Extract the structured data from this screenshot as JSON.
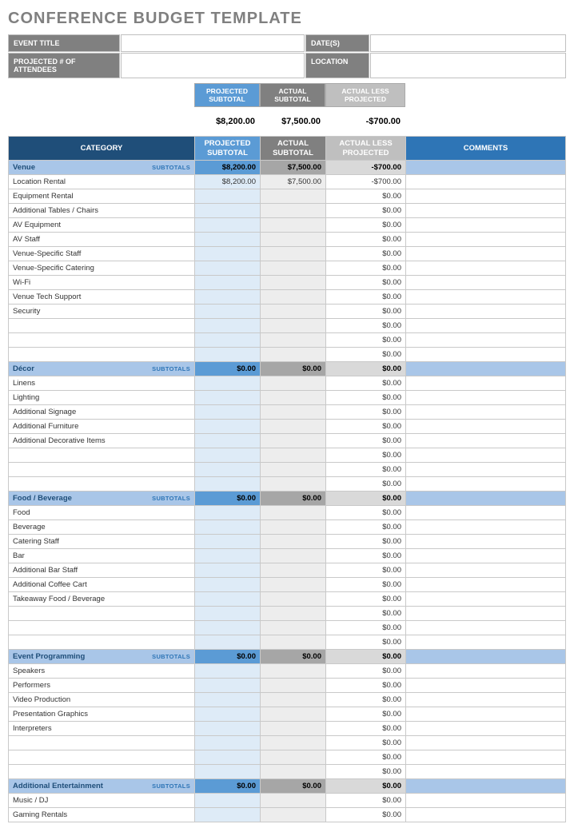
{
  "title": "CONFERENCE BUDGET TEMPLATE",
  "meta": {
    "event_title_label": "EVENT TITLE",
    "event_title_value": "",
    "dates_label": "DATE(S)",
    "dates_value": "",
    "attendees_label": "PROJECTED # OF ATTENDEES",
    "attendees_value": "",
    "location_label": "LOCATION",
    "location_value": ""
  },
  "summary": {
    "projected_label": "PROJECTED SUBTOTAL",
    "actual_label": "ACTUAL SUBTOTAL",
    "diff_label": "ACTUAL LESS PROJECTED",
    "projected": "$8,200.00",
    "actual": "$7,500.00",
    "diff": "-$700.00"
  },
  "headers": {
    "category": "CATEGORY",
    "projected": "PROJECTED SUBTOTAL",
    "actual": "ACTUAL SUBTOTAL",
    "diff": "ACTUAL LESS PROJECTED",
    "comments": "COMMENTS",
    "subtotals_tag": "SUBTOTALS"
  },
  "colors": {
    "title_gray": "#808080",
    "header_darkblue": "#1f4e79",
    "header_midblue": "#2e75b6",
    "header_lightblue": "#5b9bd5",
    "header_gray": "#808080",
    "header_lightgray": "#bfbfbf",
    "subtotal_blue": "#a9c6e8",
    "subtotal_gray": "#a6a6a6",
    "subtotal_ltgray": "#d9d9d9",
    "cell_lightblue": "#deebf7",
    "cell_lightgray": "#ededed",
    "border": "#c9c9c9"
  },
  "sections": [
    {
      "name": "Venue",
      "projected": "$8,200.00",
      "actual": "$7,500.00",
      "diff": "-$700.00",
      "items": [
        {
          "name": "Location Rental",
          "projected": "$8,200.00",
          "actual": "$7,500.00",
          "diff": "-$700.00"
        },
        {
          "name": "Equipment Rental",
          "projected": "",
          "actual": "",
          "diff": "$0.00"
        },
        {
          "name": "Additional Tables / Chairs",
          "projected": "",
          "actual": "",
          "diff": "$0.00"
        },
        {
          "name": "AV Equipment",
          "projected": "",
          "actual": "",
          "diff": "$0.00"
        },
        {
          "name": "AV Staff",
          "projected": "",
          "actual": "",
          "diff": "$0.00"
        },
        {
          "name": "Venue-Specific Staff",
          "projected": "",
          "actual": "",
          "diff": "$0.00"
        },
        {
          "name": "Venue-Specific Catering",
          "projected": "",
          "actual": "",
          "diff": "$0.00"
        },
        {
          "name": "Wi-Fi",
          "projected": "",
          "actual": "",
          "diff": "$0.00"
        },
        {
          "name": "Venue Tech Support",
          "projected": "",
          "actual": "",
          "diff": "$0.00"
        },
        {
          "name": "Security",
          "projected": "",
          "actual": "",
          "diff": "$0.00"
        },
        {
          "name": "",
          "projected": "",
          "actual": "",
          "diff": "$0.00"
        },
        {
          "name": "",
          "projected": "",
          "actual": "",
          "diff": "$0.00"
        },
        {
          "name": "",
          "projected": "",
          "actual": "",
          "diff": "$0.00"
        }
      ]
    },
    {
      "name": "Décor",
      "projected": "$0.00",
      "actual": "$0.00",
      "diff": "$0.00",
      "items": [
        {
          "name": "Linens",
          "projected": "",
          "actual": "",
          "diff": "$0.00"
        },
        {
          "name": "Lighting",
          "projected": "",
          "actual": "",
          "diff": "$0.00"
        },
        {
          "name": "Additional Signage",
          "projected": "",
          "actual": "",
          "diff": "$0.00"
        },
        {
          "name": "Additional Furniture",
          "projected": "",
          "actual": "",
          "diff": "$0.00"
        },
        {
          "name": "Additional Decorative Items",
          "projected": "",
          "actual": "",
          "diff": "$0.00"
        },
        {
          "name": "",
          "projected": "",
          "actual": "",
          "diff": "$0.00"
        },
        {
          "name": "",
          "projected": "",
          "actual": "",
          "diff": "$0.00"
        },
        {
          "name": "",
          "projected": "",
          "actual": "",
          "diff": "$0.00"
        }
      ]
    },
    {
      "name": "Food / Beverage",
      "projected": "$0.00",
      "actual": "$0.00",
      "diff": "$0.00",
      "items": [
        {
          "name": "Food",
          "projected": "",
          "actual": "",
          "diff": "$0.00"
        },
        {
          "name": "Beverage",
          "projected": "",
          "actual": "",
          "diff": "$0.00"
        },
        {
          "name": "Catering Staff",
          "projected": "",
          "actual": "",
          "diff": "$0.00"
        },
        {
          "name": "Bar",
          "projected": "",
          "actual": "",
          "diff": "$0.00"
        },
        {
          "name": "Additional Bar Staff",
          "projected": "",
          "actual": "",
          "diff": "$0.00"
        },
        {
          "name": "Additional Coffee Cart",
          "projected": "",
          "actual": "",
          "diff": "$0.00"
        },
        {
          "name": "Takeaway Food / Beverage",
          "projected": "",
          "actual": "",
          "diff": "$0.00"
        },
        {
          "name": "",
          "projected": "",
          "actual": "",
          "diff": "$0.00"
        },
        {
          "name": "",
          "projected": "",
          "actual": "",
          "diff": "$0.00"
        },
        {
          "name": "",
          "projected": "",
          "actual": "",
          "diff": "$0.00"
        }
      ]
    },
    {
      "name": "Event Programming",
      "projected": "$0.00",
      "actual": "$0.00",
      "diff": "$0.00",
      "items": [
        {
          "name": "Speakers",
          "projected": "",
          "actual": "",
          "diff": "$0.00"
        },
        {
          "name": "Performers",
          "projected": "",
          "actual": "",
          "diff": "$0.00"
        },
        {
          "name": "Video Production",
          "projected": "",
          "actual": "",
          "diff": "$0.00"
        },
        {
          "name": "Presentation Graphics",
          "projected": "",
          "actual": "",
          "diff": "$0.00"
        },
        {
          "name": "Interpreters",
          "projected": "",
          "actual": "",
          "diff": "$0.00"
        },
        {
          "name": "",
          "projected": "",
          "actual": "",
          "diff": "$0.00"
        },
        {
          "name": "",
          "projected": "",
          "actual": "",
          "diff": "$0.00"
        },
        {
          "name": "",
          "projected": "",
          "actual": "",
          "diff": "$0.00"
        }
      ]
    },
    {
      "name": "Additional Entertainment",
      "projected": "$0.00",
      "actual": "$0.00",
      "diff": "$0.00",
      "items": [
        {
          "name": "Music / DJ",
          "projected": "",
          "actual": "",
          "diff": "$0.00"
        },
        {
          "name": "Gaming Rentals",
          "projected": "",
          "actual": "",
          "diff": "$0.00"
        }
      ]
    }
  ]
}
